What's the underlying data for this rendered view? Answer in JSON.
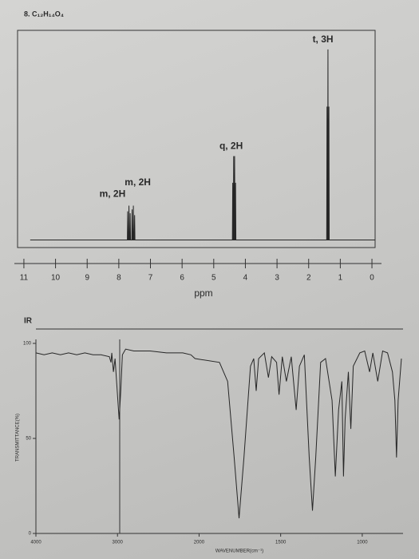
{
  "chart_data": [
    {
      "type": "line",
      "title": "8. C₁₂H₁₄O₄",
      "x_label": "ppm",
      "xlim": [
        11.2,
        -0.1
      ],
      "xticks": [
        11,
        10,
        9,
        8,
        7,
        6,
        5,
        4,
        3,
        2,
        1,
        0
      ],
      "ylim": [
        -4,
        110
      ],
      "color": "#262626",
      "x": [
        10.8,
        7.73,
        7.72,
        7.71,
        7.69,
        7.68,
        7.67,
        7.65,
        7.64,
        7.63,
        7.59,
        7.58,
        7.57,
        7.55,
        7.54,
        7.53,
        7.51,
        7.5,
        7.49,
        4.41,
        4.4,
        4.39,
        4.38,
        4.37,
        4.36,
        4.35,
        4.34,
        4.33,
        4.32,
        4.31,
        4.3,
        1.43,
        1.42,
        1.41,
        1.4,
        1.39,
        1.38,
        1.37,
        1.36,
        1.35,
        -0.1
      ],
      "values": [
        0,
        0,
        15,
        0,
        0,
        18,
        0,
        0,
        14,
        0,
        0,
        16,
        0,
        0,
        18,
        0,
        0,
        13,
        0,
        0,
        30,
        0,
        0,
        44,
        0,
        0,
        44,
        0,
        0,
        30,
        0,
        0,
        70,
        0,
        0,
        100,
        0,
        0,
        70,
        0,
        0
      ],
      "annotations": [
        {
          "text": "t, 3H",
          "x": 1.55,
          "y": 105
        },
        {
          "text": "q, 2H",
          "x": 4.45,
          "y": 49
        },
        {
          "text": "m, 2H",
          "x": 7.4,
          "y": 30
        },
        {
          "text": "m, 2H",
          "x": 8.2,
          "y": 24
        }
      ]
    },
    {
      "type": "line",
      "title": "IR",
      "x_label": "WAVENUMBER(cm⁻¹)",
      "y_label": "TRANSMITTANCE(%)",
      "xlim": [
        4000,
        750
      ],
      "x_break": 2000,
      "x_break_ratio": 2,
      "xticks": [
        4000,
        3000,
        2000,
        1500,
        1000
      ],
      "ylim": [
        0,
        100
      ],
      "yticks": [
        100,
        50,
        0
      ],
      "color": "#262626",
      "x": [
        4000,
        3900,
        3800,
        3700,
        3600,
        3500,
        3400,
        3300,
        3200,
        3100,
        3080,
        3070,
        3050,
        3030,
        2980,
        2960,
        2940,
        2900,
        2800,
        2600,
        2400,
        2200,
        2100,
        2050,
        1875,
        1825,
        1785,
        1755,
        1725,
        1685,
        1665,
        1650,
        1635,
        1600,
        1575,
        1555,
        1525,
        1510,
        1490,
        1465,
        1435,
        1405,
        1385,
        1355,
        1325,
        1305,
        1285,
        1255,
        1225,
        1185,
        1165,
        1145,
        1125,
        1115,
        1105,
        1085,
        1070,
        1055,
        1015,
        985,
        955,
        935,
        905,
        875,
        845,
        815,
        800,
        790,
        780,
        760
      ],
      "values": [
        95,
        94,
        95,
        94,
        95,
        94,
        95,
        94,
        94,
        93,
        90,
        95,
        85,
        92,
        60,
        75,
        94,
        97,
        96,
        96,
        95,
        95,
        94,
        92,
        90,
        80,
        40,
        8,
        40,
        88,
        92,
        75,
        92,
        95,
        82,
        93,
        90,
        73,
        93,
        80,
        93,
        65,
        88,
        94,
        40,
        12,
        40,
        90,
        92,
        70,
        30,
        65,
        80,
        30,
        60,
        85,
        55,
        88,
        95,
        96,
        85,
        95,
        80,
        96,
        95,
        85,
        70,
        40,
        70,
        92
      ]
    }
  ]
}
